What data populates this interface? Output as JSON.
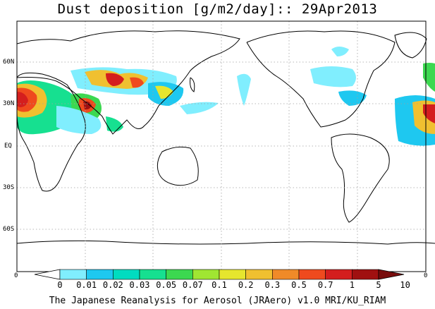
{
  "title": "Dust deposition [g/m2/day]:: 29Apr2013",
  "lat_labels": [
    "60N",
    "30N",
    "EQ",
    "30S",
    "60S"
  ],
  "edge_labels": {
    "left": "0",
    "right": "0"
  },
  "colorbar": {
    "ticks": [
      "0",
      "0.01",
      "0.02",
      "0.03",
      "0.05",
      "0.07",
      "0.1",
      "0.2",
      "0.3",
      "0.5",
      "0.7",
      "1",
      "5",
      "10"
    ],
    "colors": [
      "#ffffff",
      "#80eefe",
      "#1ec8f0",
      "#00dcc0",
      "#16e090",
      "#3cd850",
      "#a0e632",
      "#e6e62e",
      "#f0c030",
      "#f08a28",
      "#ef4a1e",
      "#d41e1e",
      "#a01010",
      "#780c0c"
    ]
  },
  "footer": "The Japanese Reanalysis for Aerosol (JRAero) v1.0 MRI/KU_RIAM"
}
